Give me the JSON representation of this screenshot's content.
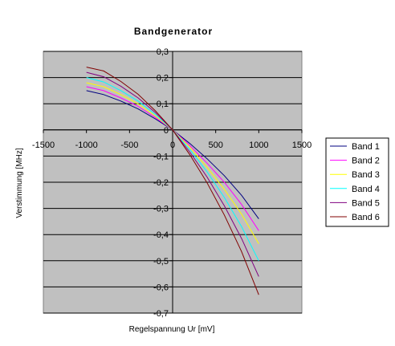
{
  "chart_data": {
    "type": "line",
    "title": "Bandgenerator",
    "xlabel": "Regelspannung Ur [mV]",
    "ylabel": "Verstimmung [MHz]",
    "xlim": [
      -1500,
      1500
    ],
    "ylim": [
      -0.7,
      0.3
    ],
    "x_ticks": [
      -1500,
      -1000,
      -500,
      0,
      500,
      1000,
      1500
    ],
    "y_ticks": [
      0.3,
      0.2,
      0.1,
      0,
      -0.1,
      -0.2,
      -0.3,
      -0.4,
      -0.5,
      -0.6,
      -0.7
    ],
    "x_tick_labels": [
      "-1500",
      "-1000",
      "-500",
      "0",
      "500",
      "1000",
      "1500"
    ],
    "y_tick_labels": [
      "0,3",
      "0,2",
      "0,1",
      "0",
      "-0,1",
      "-0,2",
      "-0,3",
      "-0,4",
      "-0,5",
      "-0,6",
      "-0,7"
    ],
    "grid": "horizontal",
    "legend_position": "right",
    "plot_background": "#c0c0c0",
    "x": [
      -1000,
      -800,
      -600,
      -400,
      -200,
      0,
      200,
      400,
      600,
      800,
      1000
    ],
    "series": [
      {
        "name": "Band 1",
        "color": "#000080",
        "values": [
          0.15,
          0.135,
          0.11,
          0.08,
          0.042,
          0.0,
          -0.052,
          -0.11,
          -0.175,
          -0.25,
          -0.34
        ]
      },
      {
        "name": "Band 2",
        "color": "#ff00ff",
        "values": [
          0.165,
          0.15,
          0.122,
          0.09,
          0.048,
          0.0,
          -0.06,
          -0.127,
          -0.2,
          -0.285,
          -0.385
        ]
      },
      {
        "name": "Band 3",
        "color": "#ffff00",
        "values": [
          0.18,
          0.165,
          0.135,
          0.099,
          0.053,
          0.0,
          -0.067,
          -0.143,
          -0.227,
          -0.322,
          -0.435
        ]
      },
      {
        "name": "Band 4",
        "color": "#00ffff",
        "values": [
          0.2,
          0.183,
          0.15,
          0.11,
          0.059,
          0.0,
          -0.075,
          -0.16,
          -0.258,
          -0.37,
          -0.5
        ]
      },
      {
        "name": "Band 5",
        "color": "#800080",
        "values": [
          0.22,
          0.203,
          0.167,
          0.122,
          0.066,
          0.0,
          -0.085,
          -0.18,
          -0.29,
          -0.415,
          -0.56
        ]
      },
      {
        "name": "Band 6",
        "color": "#800000",
        "values": [
          0.24,
          0.225,
          0.185,
          0.136,
          0.073,
          0.0,
          -0.095,
          -0.202,
          -0.325,
          -0.465,
          -0.63
        ]
      }
    ]
  }
}
